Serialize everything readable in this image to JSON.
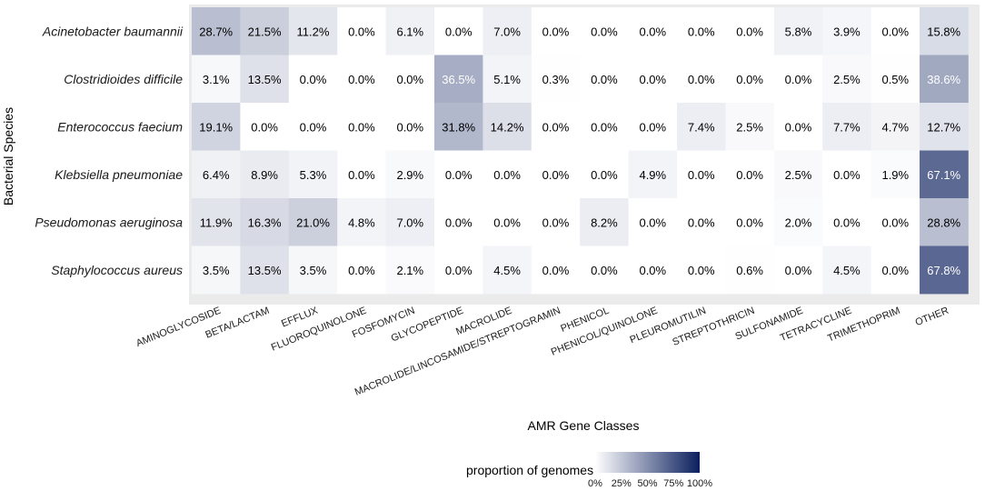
{
  "chart_data": {
    "type": "heatmap",
    "xlabel": "AMR Gene Classes",
    "ylabel": "Bacterial Species",
    "columns": [
      "AMINOGLYCOSIDE",
      "BETA/LACTAM",
      "EFFLUX",
      "FLUOROQUINOLONE",
      "FOSFOMYCIN",
      "GLYCOPEPTIDE",
      "MACROLIDE",
      "MACROLIDE/LINCOSAMIDE/STREPTOGRAMIN",
      "PHENICOL",
      "PHENICOL/QUINOLONE",
      "PLEUROMUTILIN",
      "STREPTOTHRICIN",
      "SULFONAMIDE",
      "TETRACYCLINE",
      "TRIMETHOPRIM",
      "OTHER"
    ],
    "rows": [
      "Acinetobacter baumannii",
      "Clostridioides difficile",
      "Enterococcus faecium",
      "Klebsiella pneumoniae",
      "Pseudomonas aeruginosa",
      "Staphylococcus aureus"
    ],
    "values": [
      [
        28.7,
        21.5,
        11.2,
        0.0,
        6.1,
        0.0,
        7.0,
        0.0,
        0.0,
        0.0,
        0.0,
        0.0,
        5.8,
        3.9,
        0.0,
        15.8
      ],
      [
        3.1,
        13.5,
        0.0,
        0.0,
        0.0,
        36.5,
        5.1,
        0.3,
        0.0,
        0.0,
        0.0,
        0.0,
        0.0,
        2.5,
        0.5,
        38.6
      ],
      [
        19.1,
        0.0,
        0.0,
        0.0,
        0.0,
        31.8,
        14.2,
        0.0,
        0.0,
        0.0,
        7.4,
        2.5,
        0.0,
        7.7,
        4.7,
        12.7
      ],
      [
        6.4,
        8.9,
        5.3,
        0.0,
        2.9,
        0.0,
        0.0,
        0.0,
        0.0,
        4.9,
        0.0,
        0.0,
        2.5,
        0.0,
        1.9,
        67.1
      ],
      [
        11.9,
        16.3,
        21.0,
        4.8,
        7.0,
        0.0,
        0.0,
        0.0,
        8.2,
        0.0,
        0.0,
        0.0,
        2.0,
        0.0,
        0.0,
        28.8
      ],
      [
        3.5,
        13.5,
        3.5,
        0.0,
        2.1,
        0.0,
        4.5,
        0.0,
        0.0,
        0.0,
        0.0,
        0.6,
        0.0,
        4.5,
        0.0,
        67.8
      ]
    ],
    "value_suffix": "%",
    "color_low": "#ffffff",
    "color_high": "#0b1f5e",
    "panel_background": "#ebebeb",
    "legend": {
      "title": "proportion of genomes",
      "ticks": [
        "0%",
        "25%",
        "50%",
        "75%",
        "100%"
      ],
      "range": [
        0,
        100
      ],
      "placement": "bottom"
    }
  }
}
